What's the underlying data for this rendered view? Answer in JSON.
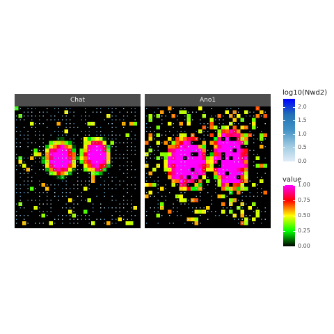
{
  "chart_data": {
    "type": "heatmap",
    "facets": [
      {
        "label": "Chat",
        "pattern": "chat"
      },
      {
        "label": "Ano1",
        "pattern": "ano1"
      }
    ],
    "point_legend": {
      "title": "log10(Nwd2)",
      "ticks": [
        "0.0",
        "0.5",
        "1.0",
        "1.5",
        "2.0"
      ],
      "tick_values": [
        0,
        0.5,
        1.0,
        1.5,
        2.0
      ],
      "range": [
        0,
        2.3
      ],
      "colors": [
        "#e0ecf8",
        "#9ecae1",
        "#4292c6",
        "#2171b5",
        "#0000ff"
      ]
    },
    "fill_legend": {
      "title": "value",
      "ticks": [
        "0.00",
        "0.25",
        "0.50",
        "0.75",
        "1.00"
      ],
      "tick_values": [
        0,
        0.25,
        0.5,
        0.75,
        1.0
      ],
      "range": [
        0,
        1
      ],
      "colors": [
        "#000000",
        "#00ff00",
        "#ffff00",
        "#ff0000",
        "#ff00ff"
      ]
    }
  }
}
